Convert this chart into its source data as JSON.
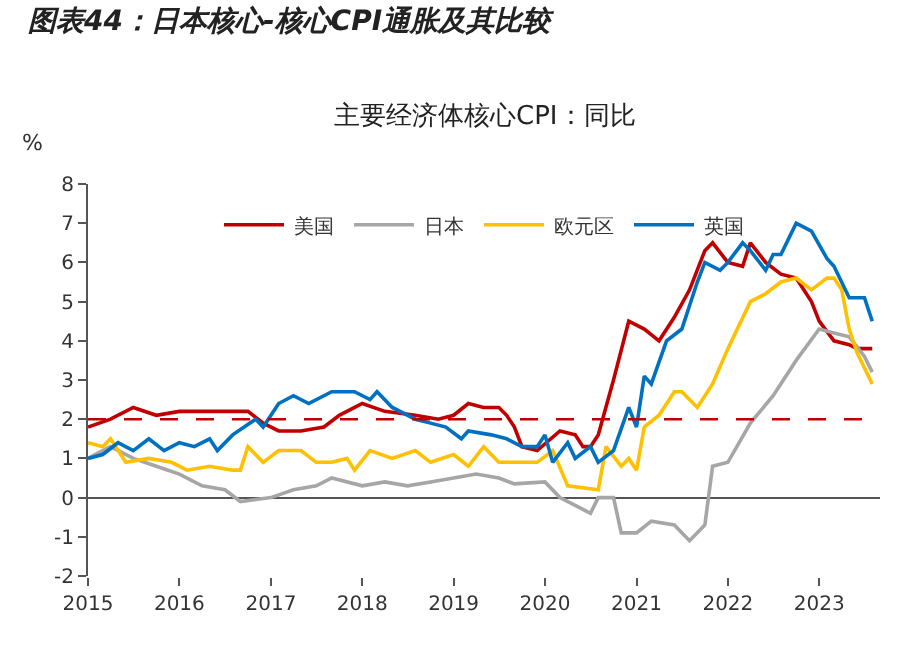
{
  "chart_data": {
    "type": "line",
    "title": "图表44：日本核心-核心CPI通胀及其比较",
    "subtitle": "主要经济体核心CPI：同比",
    "ylabel": "%",
    "xlim": [
      "2015-01",
      "2023-09"
    ],
    "ylim": [
      -2,
      8
    ],
    "xticks": [
      {
        "value": "2015",
        "label": "2015"
      },
      {
        "value": "2016",
        "label": "2016"
      },
      {
        "value": "2017",
        "label": "2017"
      },
      {
        "value": "2018",
        "label": "2018"
      },
      {
        "value": "2019",
        "label": "2019"
      },
      {
        "value": "2020",
        "label": "2020"
      },
      {
        "value": "2021",
        "label": "2021"
      },
      {
        "value": "2022",
        "label": "2022"
      },
      {
        "value": "2023",
        "label": "2023"
      }
    ],
    "yticks": [
      -2,
      -1,
      0,
      1,
      2,
      3,
      4,
      5,
      6,
      7,
      8
    ],
    "grid": false,
    "legend": "top",
    "marker": "none",
    "line_style": "solid",
    "ref_lines": [
      {
        "axis": "y",
        "value": 2,
        "color": "#c00000",
        "line_style": "dashed"
      }
    ],
    "series": [
      {
        "name": "美国",
        "color": "#c00000",
        "x": [
          "2015-01",
          "2015-04",
          "2015-07",
          "2015-10",
          "2016-01",
          "2016-04",
          "2016-07",
          "2016-10",
          "2016-12",
          "2017-02",
          "2017-05",
          "2017-08",
          "2017-10",
          "2018-01",
          "2018-04",
          "2018-08",
          "2018-11",
          "2019-01",
          "2019-03",
          "2019-05",
          "2019-07",
          "2019-08",
          "2019-09",
          "2019-10",
          "2019-12",
          "2020-03",
          "2020-05",
          "2020-06",
          "2020-07",
          "2020-08",
          "2020-10",
          "2020-12",
          "2021-02",
          "2021-04",
          "2021-06",
          "2021-08",
          "2021-10",
          "2021-11",
          "2022-01",
          "2022-03",
          "2022-04",
          "2022-06",
          "2022-08",
          "2022-10",
          "2022-12",
          "2023-01",
          "2023-03",
          "2023-05",
          "2023-06",
          "2023-08"
        ],
        "values": [
          1.8,
          2.0,
          2.3,
          2.1,
          2.2,
          2.2,
          2.2,
          2.2,
          1.9,
          1.7,
          1.7,
          1.8,
          2.1,
          2.4,
          2.2,
          2.1,
          2.0,
          2.1,
          2.4,
          2.3,
          2.3,
          2.1,
          1.8,
          1.3,
          1.2,
          1.7,
          1.6,
          1.3,
          1.3,
          1.6,
          3.0,
          4.5,
          4.3,
          4.0,
          4.6,
          5.3,
          6.3,
          6.5,
          6.0,
          5.9,
          6.5,
          6.0,
          5.7,
          5.6,
          5.0,
          4.5,
          4.0,
          3.9,
          3.8,
          3.8
        ]
      },
      {
        "name": "日本",
        "color": "#a6a6a6",
        "x": [
          "2015-01",
          "2015-04",
          "2015-07",
          "2015-10",
          "2016-01",
          "2016-04",
          "2016-07",
          "2016-09",
          "2017-01",
          "2017-04",
          "2017-07",
          "2017-09",
          "2018-01",
          "2018-04",
          "2018-07",
          "2018-10",
          "2019-01",
          "2019-04",
          "2019-07",
          "2019-09",
          "2020-01",
          "2020-03",
          "2020-06",
          "2020-07",
          "2020-08",
          "2020-10",
          "2020-11",
          "2021-01",
          "2021-03",
          "2021-06",
          "2021-08",
          "2021-10",
          "2021-11",
          "2022-01",
          "2022-04",
          "2022-07",
          "2022-10",
          "2023-01",
          "2023-03",
          "2023-05",
          "2023-07",
          "2023-08"
        ],
        "values": [
          1.0,
          1.3,
          1.0,
          0.8,
          0.6,
          0.3,
          0.2,
          -0.1,
          0.0,
          0.2,
          0.3,
          0.5,
          0.3,
          0.4,
          0.3,
          0.4,
          0.5,
          0.6,
          0.5,
          0.35,
          0.4,
          0.0,
          -0.3,
          -0.4,
          0.0,
          0.0,
          -0.9,
          -0.9,
          -0.6,
          -0.7,
          -1.1,
          -0.7,
          0.8,
          0.9,
          1.9,
          2.6,
          3.5,
          4.3,
          4.2,
          4.1,
          3.6,
          3.2
        ]
      },
      {
        "name": "欧元区",
        "color": "#ffc000",
        "x": [
          "2015-01",
          "2015-03",
          "2015-04",
          "2015-06",
          "2015-09",
          "2015-12",
          "2016-02",
          "2016-05",
          "2016-08",
          "2016-09",
          "2016-10",
          "2016-12",
          "2017-02",
          "2017-05",
          "2017-07",
          "2017-09",
          "2017-11",
          "2017-12",
          "2018-02",
          "2018-05",
          "2018-08",
          "2018-10",
          "2019-01",
          "2019-03",
          "2019-05",
          "2019-07",
          "2019-09",
          "2019-12",
          "2020-02",
          "2020-04",
          "2020-08",
          "2020-09",
          "2020-11",
          "2020-12",
          "2021-01",
          "2021-02",
          "2021-04",
          "2021-06",
          "2021-07",
          "2021-09",
          "2021-11",
          "2022-01",
          "2022-04",
          "2022-06",
          "2022-08",
          "2022-10",
          "2022-12",
          "2023-02",
          "2023-03",
          "2023-04",
          "2023-05",
          "2023-06",
          "2023-08"
        ],
        "values": [
          1.4,
          1.3,
          1.5,
          0.9,
          1.0,
          0.9,
          0.7,
          0.8,
          0.7,
          0.7,
          1.3,
          0.9,
          1.2,
          1.2,
          0.9,
          0.9,
          1.0,
          0.7,
          1.2,
          1.0,
          1.2,
          0.9,
          1.1,
          0.8,
          1.3,
          0.9,
          0.9,
          0.9,
          1.2,
          0.3,
          0.2,
          1.3,
          0.8,
          1.0,
          0.7,
          1.8,
          2.1,
          2.7,
          2.7,
          2.3,
          2.9,
          3.8,
          5.0,
          5.2,
          5.5,
          5.6,
          5.3,
          5.6,
          5.6,
          5.3,
          4.3,
          3.7,
          2.9
        ]
      },
      {
        "name": "英国",
        "color": "#0070c0",
        "x": [
          "2015-01",
          "2015-03",
          "2015-05",
          "2015-07",
          "2015-09",
          "2015-11",
          "2016-01",
          "2016-03",
          "2016-05",
          "2016-06",
          "2016-08",
          "2016-11",
          "2016-12",
          "2017-02",
          "2017-04",
          "2017-06",
          "2017-09",
          "2017-12",
          "2018-02",
          "2018-03",
          "2018-05",
          "2018-08",
          "2018-10",
          "2018-12",
          "2019-02",
          "2019-03",
          "2019-06",
          "2019-08",
          "2019-10",
          "2019-12",
          "2020-01",
          "2020-02",
          "2020-04",
          "2020-05",
          "2020-07",
          "2020-08",
          "2020-10",
          "2020-12",
          "2021-01",
          "2021-02",
          "2021-03",
          "2021-05",
          "2021-07",
          "2021-09",
          "2021-10",
          "2021-12",
          "2022-01",
          "2022-03",
          "2022-04",
          "2022-06",
          "2022-07",
          "2022-08",
          "2022-10",
          "2022-12",
          "2023-02",
          "2023-03",
          "2023-05",
          "2023-07",
          "2023-08"
        ],
        "values": [
          1.0,
          1.1,
          1.4,
          1.2,
          1.5,
          1.2,
          1.4,
          1.3,
          1.5,
          1.2,
          1.6,
          2.0,
          1.8,
          2.4,
          2.6,
          2.4,
          2.7,
          2.7,
          2.5,
          2.7,
          2.3,
          2.0,
          1.9,
          1.8,
          1.5,
          1.7,
          1.6,
          1.5,
          1.3,
          1.3,
          1.6,
          0.9,
          1.4,
          1.0,
          1.3,
          0.9,
          1.2,
          2.3,
          1.8,
          3.1,
          2.9,
          4.0,
          4.3,
          5.5,
          6.0,
          5.8,
          6.0,
          6.5,
          6.3,
          5.8,
          6.2,
          6.2,
          7.0,
          6.8,
          6.1,
          5.9,
          5.1,
          5.1,
          4.5
        ]
      }
    ]
  }
}
